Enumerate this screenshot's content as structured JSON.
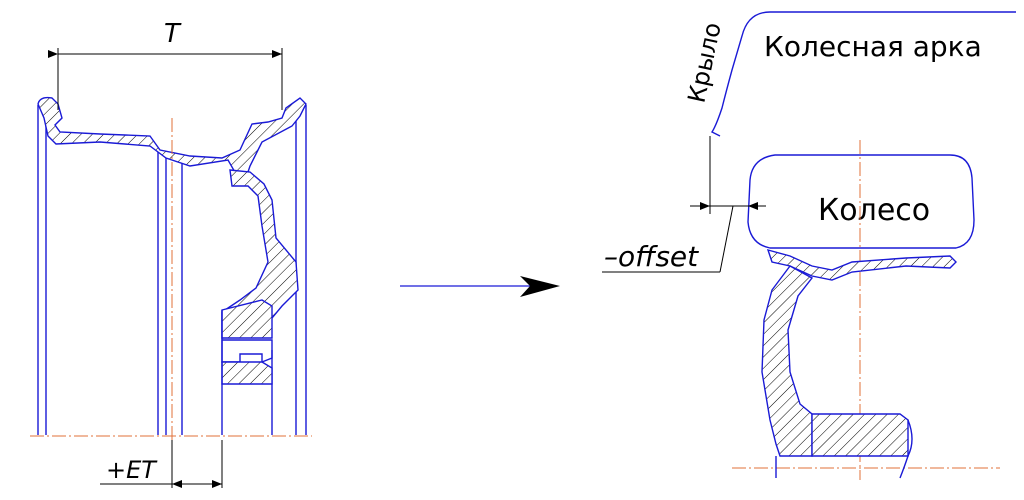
{
  "left_drawing": {
    "width_label": "T",
    "offset_label": "+ET"
  },
  "arrow": {
    "color": "#1a1ad6"
  },
  "right_drawing": {
    "fender_label": "Крыло",
    "arch_label": "Колесная арка",
    "wheel_label": "Колесо",
    "offset_label": "–offset"
  },
  "colors": {
    "outline": "#1a1ad6",
    "axis": "#e0703a",
    "dimension": "#000000"
  }
}
